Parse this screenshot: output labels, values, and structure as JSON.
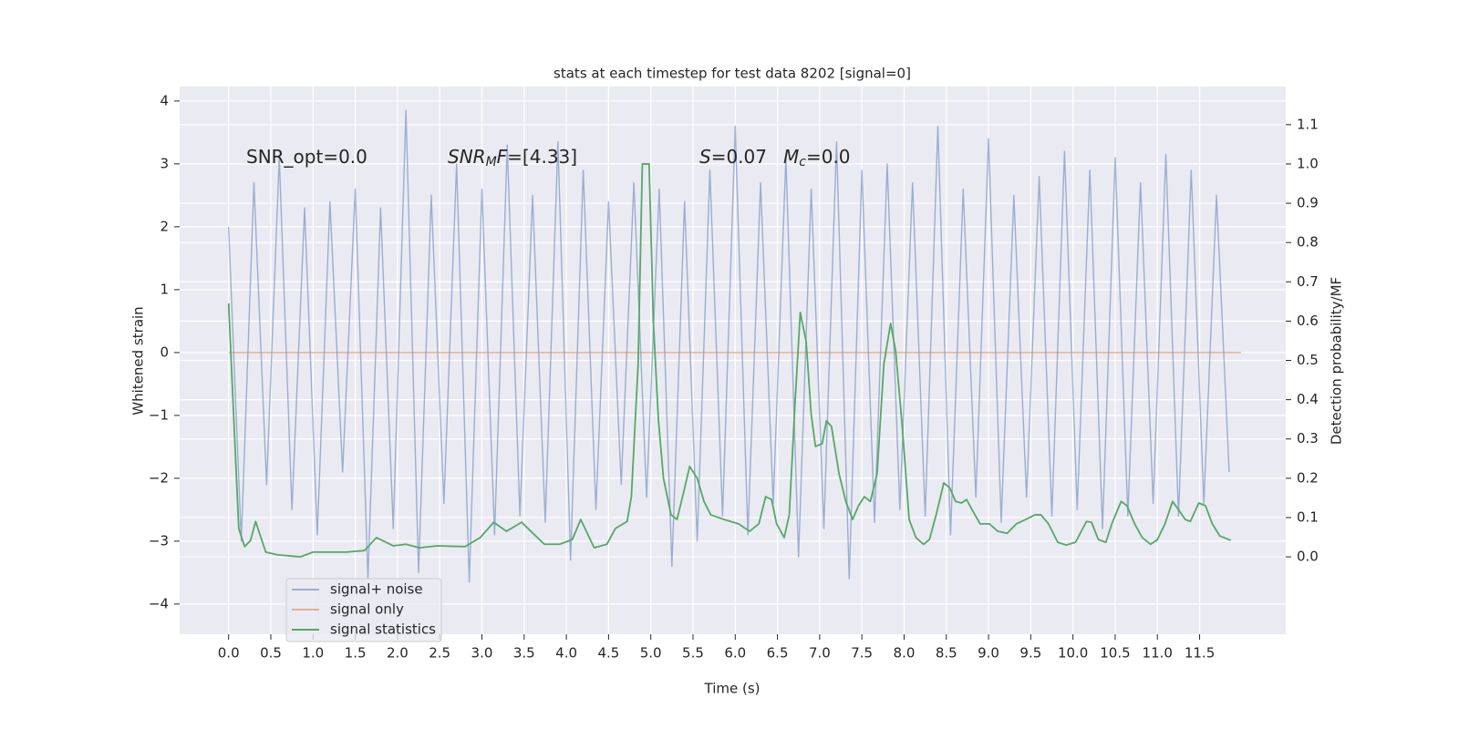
{
  "chart_data": {
    "type": "line",
    "title": "stats at each timestep for test data 8202 [signal=0]",
    "xlabel": "Time (s)",
    "ylabel": "Whitened strain",
    "y2label": "Detection probability/MF",
    "xlim": [
      -0.58,
      12.52
    ],
    "ylim": [
      -4.48,
      4.23
    ],
    "y2lim": [
      -0.197,
      1.197
    ],
    "xticks": [
      {
        "value": 0,
        "label": "0.0"
      },
      0.5,
      {
        "value": 1,
        "label": "1.0"
      },
      1.5,
      {
        "value": 2,
        "label": "2.0"
      },
      2.5,
      {
        "value": 3,
        "label": "3.0"
      },
      3.5,
      {
        "value": 4,
        "label": "4.0"
      },
      4.5,
      {
        "value": 5,
        "label": "5.0"
      },
      5.5,
      {
        "value": 6,
        "label": "6.0"
      },
      6.5,
      {
        "value": 7,
        "label": "7.0"
      },
      7.5,
      {
        "value": 8,
        "label": "8.0"
      },
      8.5,
      {
        "value": 9,
        "label": "9.0"
      },
      9.5,
      {
        "value": 10,
        "label": "10.0"
      },
      10.5,
      {
        "value": 11,
        "label": "11.0"
      },
      11.5
    ],
    "yticks": [
      {
        "value": -4,
        "label": "−4"
      },
      {
        "value": -3,
        "label": "−3"
      },
      {
        "value": -2,
        "label": "−2"
      },
      {
        "value": -1,
        "label": "−1"
      },
      0,
      1,
      2,
      3,
      4
    ],
    "y2ticks": [
      {
        "value": 0,
        "label": "0.0"
      },
      0.1,
      0.2,
      0.3,
      0.4,
      0.5,
      0.6,
      0.7,
      0.8,
      0.9,
      {
        "value": 1,
        "label": "1.0"
      },
      1.1
    ],
    "grid": true,
    "legend": "lower left",
    "annotations": [
      [
        "SNR_opt=0.0"
      ],
      [
        "SNR",
        "M",
        "F",
        "=[4.33]"
      ],
      [
        "S",
        "=0.07"
      ],
      [
        "M",
        "c",
        "=0.0"
      ]
    ],
    "series": [
      {
        "name": "signal+ noise",
        "color": "#4c72b0",
        "x": [
          0,
          0.15,
          0.3,
          0.45,
          0.6,
          0.75,
          0.9,
          1.05,
          1.2,
          1.35,
          1.5,
          1.65,
          1.8,
          1.95,
          2.1,
          2.25,
          2.4,
          2.55,
          2.7,
          2.85,
          3.0,
          3.15,
          3.3,
          3.45,
          3.6,
          3.75,
          3.9,
          4.05,
          4.2,
          4.35,
          4.5,
          4.65,
          4.8,
          4.95,
          5.1,
          5.25,
          5.4,
          5.55,
          5.7,
          5.85,
          6.0,
          6.15,
          6.3,
          6.45,
          6.6,
          6.75,
          6.9,
          7.05,
          7.2,
          7.35,
          7.5,
          7.65,
          7.8,
          7.95,
          8.1,
          8.25,
          8.4,
          8.55,
          8.7,
          8.85,
          9.0,
          9.15,
          9.3,
          9.45,
          9.6,
          9.75,
          9.9,
          10.05,
          10.2,
          10.35,
          10.5,
          10.65,
          10.8,
          10.95,
          11.1,
          11.25,
          11.4,
          11.55,
          11.7,
          11.85
        ],
        "values": [
          2.0,
          -3.0,
          2.7,
          -2.1,
          3.1,
          -2.5,
          2.3,
          -2.9,
          2.4,
          -1.9,
          2.6,
          -3.6,
          2.3,
          -2.8,
          3.85,
          -3.5,
          2.5,
          -2.4,
          3.0,
          -3.65,
          2.6,
          -2.9,
          3.3,
          -2.6,
          2.5,
          -2.7,
          3.35,
          -3.3,
          2.9,
          -2.5,
          2.4,
          -2.1,
          2.7,
          -2.3,
          2.6,
          -3.4,
          2.4,
          -3.0,
          2.9,
          -2.6,
          3.6,
          -2.9,
          2.7,
          -2.4,
          3.1,
          -3.25,
          2.6,
          -2.8,
          3.35,
          -3.6,
          2.9,
          -2.7,
          3.0,
          -2.5,
          2.7,
          -2.6,
          3.6,
          -2.9,
          2.6,
          -2.3,
          3.4,
          -2.7,
          2.5,
          -2.3,
          2.8,
          -2.6,
          3.2,
          -2.5,
          2.9,
          -2.8,
          3.1,
          -2.6,
          2.7,
          -2.4,
          3.15,
          -2.6,
          2.9,
          -2.4,
          2.5,
          -1.9
        ]
      },
      {
        "name": "signal only",
        "color": "#dd8452",
        "x": [
          0,
          11.99
        ],
        "values": [
          0,
          0
        ]
      },
      {
        "name": "signal statistics",
        "color": "#55a868",
        "axis": "y2",
        "x": [
          0,
          0.12,
          0.19,
          0.26,
          0.32,
          0.44,
          0.58,
          0.85,
          1.0,
          1.39,
          1.61,
          1.75,
          1.95,
          2.1,
          2.26,
          2.47,
          2.8,
          2.98,
          3.14,
          3.29,
          3.47,
          3.57,
          3.74,
          3.92,
          4.07,
          4.17,
          4.33,
          4.48,
          4.58,
          4.72,
          4.77,
          4.85,
          4.9,
          4.98,
          5.03,
          5.09,
          5.15,
          5.24,
          5.31,
          5.39,
          5.46,
          5.55,
          5.63,
          5.71,
          5.87,
          6.04,
          6.17,
          6.28,
          6.36,
          6.43,
          6.49,
          6.58,
          6.64,
          6.71,
          6.77,
          6.84,
          6.9,
          6.95,
          7.03,
          7.08,
          7.14,
          7.23,
          7.31,
          7.39,
          7.46,
          7.53,
          7.6,
          7.68,
          7.76,
          7.84,
          7.9,
          7.98,
          8.06,
          8.14,
          8.23,
          8.3,
          8.38,
          8.47,
          8.54,
          8.61,
          8.68,
          8.74,
          8.81,
          8.9,
          9.01,
          9.11,
          9.22,
          9.33,
          9.44,
          9.55,
          9.62,
          9.71,
          9.82,
          9.92,
          10.03,
          10.16,
          10.22,
          10.3,
          10.39,
          10.46,
          10.57,
          10.64,
          10.73,
          10.82,
          10.92,
          11.0,
          11.09,
          11.18,
          11.24,
          11.33,
          11.39,
          11.49,
          11.57,
          11.65,
          11.74,
          11.87
        ],
        "values": [
          0.645,
          0.072,
          0.026,
          0.042,
          0.09,
          0.012,
          0.005,
          0.0,
          0.012,
          0.012,
          0.016,
          0.049,
          0.028,
          0.032,
          0.023,
          0.028,
          0.026,
          0.049,
          0.088,
          0.065,
          0.088,
          0.067,
          0.032,
          0.032,
          0.044,
          0.095,
          0.023,
          0.032,
          0.072,
          0.09,
          0.153,
          0.49,
          1.0,
          1.0,
          0.6,
          0.35,
          0.2,
          0.107,
          0.095,
          0.165,
          0.23,
          0.2,
          0.141,
          0.107,
          0.095,
          0.084,
          0.065,
          0.084,
          0.153,
          0.146,
          0.084,
          0.049,
          0.107,
          0.397,
          0.622,
          0.548,
          0.362,
          0.281,
          0.288,
          0.346,
          0.332,
          0.211,
          0.141,
          0.095,
          0.13,
          0.153,
          0.141,
          0.211,
          0.49,
          0.594,
          0.524,
          0.327,
          0.095,
          0.049,
          0.032,
          0.044,
          0.107,
          0.188,
          0.176,
          0.141,
          0.137,
          0.146,
          0.118,
          0.084,
          0.084,
          0.065,
          0.06,
          0.084,
          0.095,
          0.107,
          0.107,
          0.084,
          0.037,
          0.03,
          0.037,
          0.09,
          0.088,
          0.044,
          0.037,
          0.084,
          0.141,
          0.13,
          0.084,
          0.049,
          0.032,
          0.044,
          0.084,
          0.141,
          0.123,
          0.095,
          0.09,
          0.137,
          0.13,
          0.084,
          0.053,
          0.042
        ]
      }
    ]
  }
}
